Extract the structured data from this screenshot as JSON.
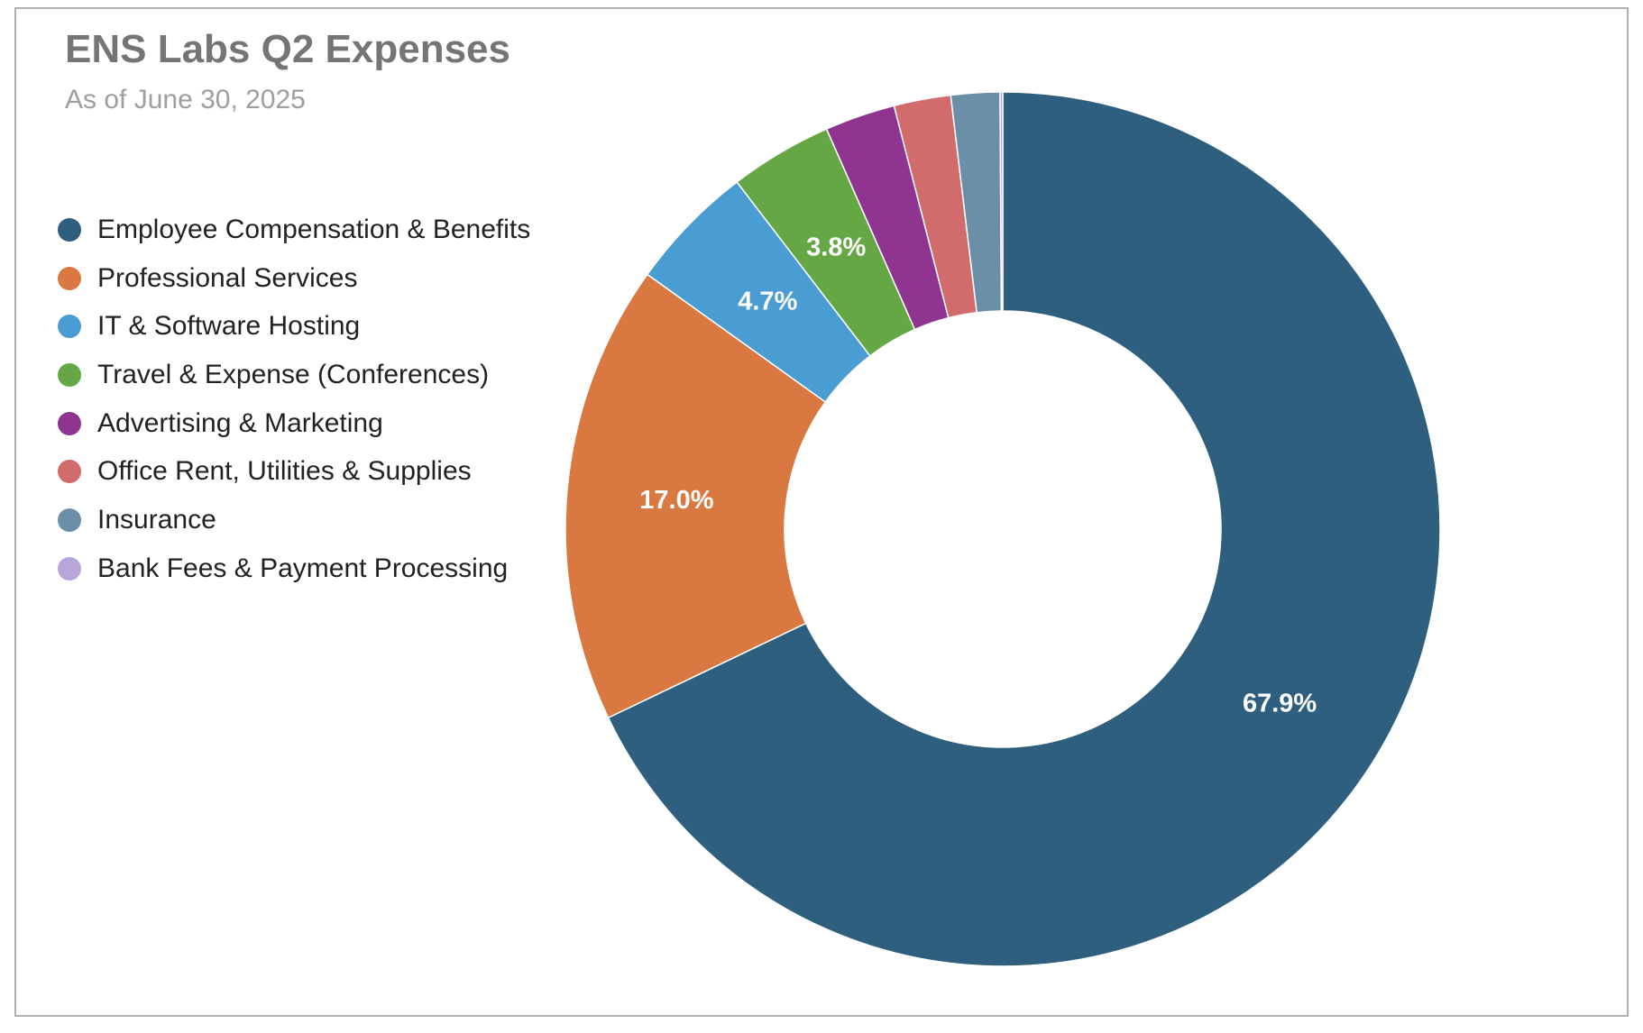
{
  "chart_data": {
    "type": "pie",
    "title": "ENS Labs Q2 Expenses",
    "subtitle": "As of June 30, 2025",
    "donut": true,
    "legend_position": "left",
    "slices": [
      {
        "label": "Employee Compensation & Benefits",
        "value": 67.9,
        "color": "#2e5f7f",
        "display": "67.9%"
      },
      {
        "label": "Professional Services",
        "value": 17.0,
        "color": "#d97841",
        "display": "17.0%"
      },
      {
        "label": "IT & Software Hosting",
        "value": 4.7,
        "color": "#4a9dd3",
        "display": "4.7%"
      },
      {
        "label": "Travel & Expense (Conferences)",
        "value": 3.8,
        "color": "#66a745",
        "display": "3.8%"
      },
      {
        "label": "Advertising & Marketing",
        "value": 2.6,
        "color": "#8f3590",
        "display": ""
      },
      {
        "label": "Office Rent, Utilities & Supplies",
        "value": 2.1,
        "color": "#d26b6b",
        "display": ""
      },
      {
        "label": "Insurance",
        "value": 1.8,
        "color": "#6a8fa6",
        "display": ""
      },
      {
        "label": "Bank Fees & Payment Processing",
        "value": 0.1,
        "color": "#b8a6db",
        "display": ""
      }
    ]
  }
}
